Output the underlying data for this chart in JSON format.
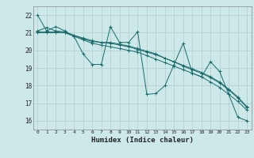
{
  "xlabel": "Humidex (Indice chaleur)",
  "xlim": [
    -0.5,
    23.5
  ],
  "ylim": [
    15.5,
    22.5
  ],
  "xticks": [
    0,
    1,
    2,
    3,
    4,
    5,
    6,
    7,
    8,
    9,
    10,
    11,
    12,
    13,
    14,
    15,
    16,
    17,
    18,
    19,
    20,
    21,
    22,
    23
  ],
  "yticks": [
    16,
    17,
    18,
    19,
    20,
    21,
    22
  ],
  "bg_color": "#cce8e8",
  "grid_color": "#b0cccc",
  "line_color": "#1a6b6b",
  "lines": [
    [
      22.0,
      21.1,
      21.35,
      21.1,
      20.8,
      19.8,
      19.2,
      19.2,
      21.35,
      20.45,
      20.45,
      21.05,
      17.5,
      17.55,
      18.0,
      19.2,
      20.4,
      18.7,
      18.5,
      19.35,
      18.8,
      17.5,
      16.2,
      16.0
    ],
    [
      21.1,
      21.3,
      21.1,
      21.05,
      20.85,
      20.65,
      20.5,
      20.45,
      20.45,
      20.35,
      20.25,
      20.1,
      19.95,
      19.8,
      19.55,
      19.35,
      19.15,
      18.95,
      18.75,
      18.5,
      18.2,
      17.8,
      17.35,
      16.8
    ],
    [
      21.05,
      21.05,
      21.05,
      21.0,
      20.85,
      20.7,
      20.55,
      20.45,
      20.4,
      20.3,
      20.2,
      20.05,
      19.9,
      19.75,
      19.55,
      19.35,
      19.1,
      18.9,
      18.7,
      18.45,
      18.15,
      17.75,
      17.3,
      16.75
    ],
    [
      21.0,
      21.0,
      21.0,
      21.0,
      20.8,
      20.6,
      20.4,
      20.3,
      20.2,
      20.1,
      20.0,
      19.9,
      19.7,
      19.5,
      19.3,
      19.1,
      18.9,
      18.7,
      18.5,
      18.2,
      17.9,
      17.5,
      17.1,
      16.6
    ]
  ]
}
